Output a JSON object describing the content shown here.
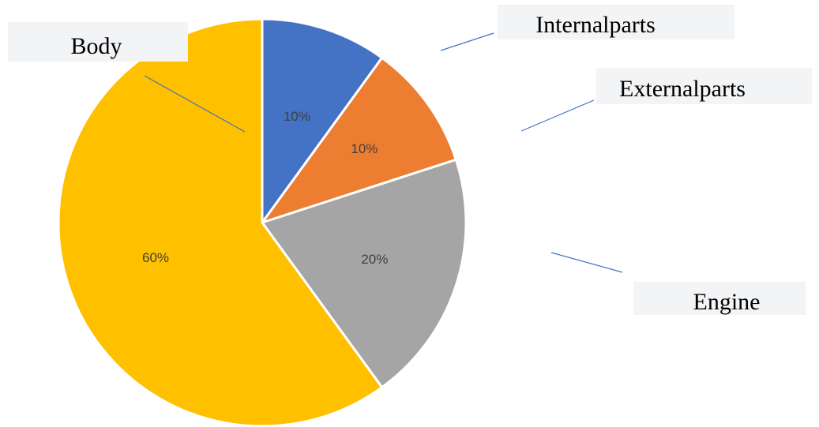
{
  "chart_data": {
    "type": "pie",
    "title": "",
    "start_angle_deg": 0,
    "direction": "clockwise",
    "slices": [
      {
        "name": "Internalparts",
        "value": 10,
        "label": "10%",
        "color": "#4472c4"
      },
      {
        "name": "Externalparts",
        "value": 10,
        "label": "10%",
        "color": "#ed7d31"
      },
      {
        "name": "Engine",
        "value": 20,
        "label": "20%",
        "color": "#a5a5a5"
      },
      {
        "name": "Body",
        "value": 60,
        "label": "60%",
        "color": "#ffc000"
      }
    ],
    "leader_line_color": "#4472c4"
  }
}
